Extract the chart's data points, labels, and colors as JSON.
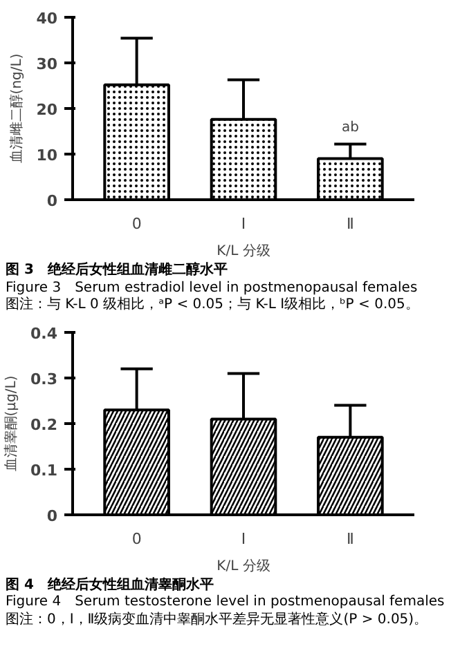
{
  "chart_data": [
    {
      "type": "bar",
      "title": "图 3　绝经后女性组血清雌二醇水平",
      "subtitle": "Figure 3　Serum estradiol level in postmenopausal females",
      "xlabel": "K/L 分级",
      "ylabel": "血清雌二醇(ng/L)",
      "categories": [
        "0",
        "Ⅰ",
        "Ⅱ"
      ],
      "values": [
        25.2,
        17.6,
        9.0
      ],
      "errors": [
        [
          25.2,
          35.4
        ],
        [
          17.6,
          26.3
        ],
        [
          9.0,
          12.2
        ]
      ],
      "color": "#ffffff",
      "ylim": [
        0,
        40
      ],
      "yticks": [
        0,
        10,
        20,
        30,
        40
      ],
      "grid": false,
      "annotations": [
        {
          "text": "ab",
          "x": "Ⅱ",
          "y": 12.2
        },
        "图注：与 K-L 0 级相比，ᵃP < 0.05；与 K-L Ⅰ级相比，ᵇP < 0.05。"
      ]
    },
    {
      "type": "bar",
      "title": "图 4　绝经后女性组血清睾酮水平",
      "subtitle": "Figure 4　Serum testosterone level in postmenopausal females",
      "xlabel": "K/L 分级",
      "ylabel": "血清睾酮(μg/L)",
      "categories": [
        "0",
        "Ⅰ",
        "Ⅱ"
      ],
      "values": [
        0.23,
        0.21,
        0.17
      ],
      "errors": [
        [
          0.23,
          0.32
        ],
        [
          0.21,
          0.31
        ],
        [
          0.17,
          0.24
        ]
      ],
      "color": "#ffffff",
      "ylim": [
        0,
        0.4
      ],
      "yticks": [
        0,
        0.1,
        0.2,
        0.3,
        0.4
      ],
      "grid": false,
      "annotations": [
        "图注：0，Ⅰ，Ⅱ级病变血清中睾酮水平差异无显著性意义(P > 0.05)。"
      ]
    }
  ]
}
